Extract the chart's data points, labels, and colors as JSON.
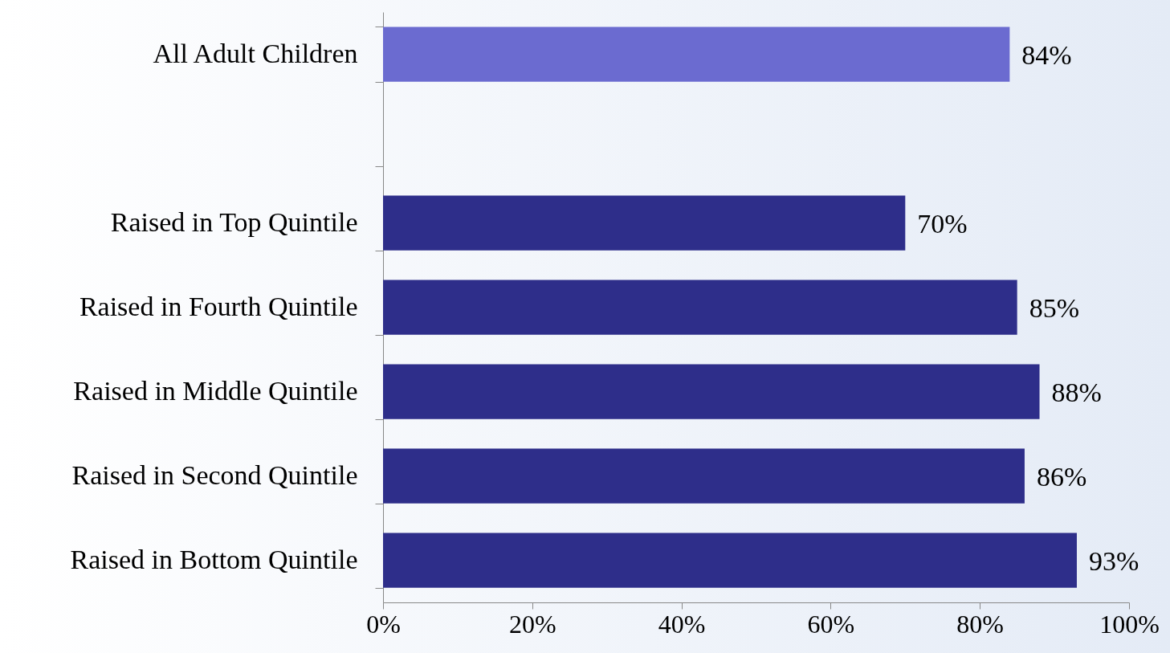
{
  "chart_data": {
    "type": "bar",
    "orientation": "horizontal",
    "categories": [
      "All Adult Children",
      null,
      "Raised in Top Quintile",
      "Raised in Fourth Quintile",
      "Raised in Middle Quintile",
      "Raised in Second Quintile",
      "Raised in Bottom Quintile"
    ],
    "values": [
      84,
      null,
      70,
      85,
      88,
      86,
      93
    ],
    "colors": [
      "#6b6bd0",
      null,
      "#2e2e8a",
      "#2e2e8a",
      "#2e2e8a",
      "#2e2e8a",
      "#2e2e8a"
    ],
    "value_labels": [
      "84%",
      null,
      "70%",
      "85%",
      "88%",
      "86%",
      "93%"
    ],
    "xlim": [
      0,
      100
    ],
    "xticks": [
      {
        "value": 0,
        "label": "0%"
      },
      {
        "value": 20,
        "label": "20%"
      },
      {
        "value": 40,
        "label": "40%"
      },
      {
        "value": 60,
        "label": "60%"
      },
      {
        "value": 80,
        "label": "80%"
      },
      {
        "value": 100,
        "label": "100%"
      }
    ],
    "grid": false
  }
}
